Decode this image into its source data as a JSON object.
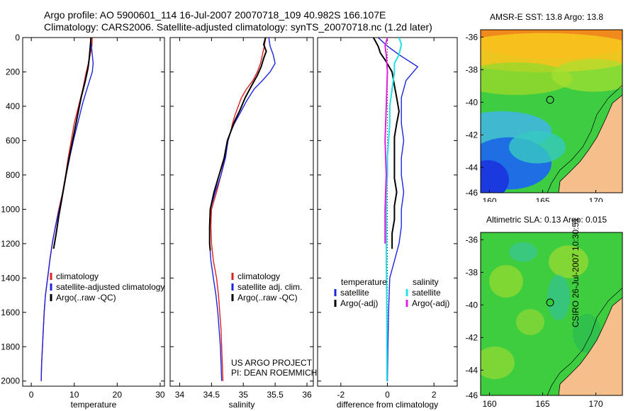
{
  "title_lines": [
    "Argo profile: AO 5900601_114 16-Jul-2007 20070718_109 40.982S 166.107E",
    "Climatology: CARS2006. Satellite-adjusted climatology: synTS_20070718.nc (1.2d later)"
  ],
  "credit": "CSIRO 26-Jul-2007 10:30:51",
  "colors": {
    "climatology": "#e02020",
    "satellite": "#1c24e0",
    "argo": "#000000",
    "salinity_sat": "#20e0e8",
    "salinity_argo": "#e020e0"
  },
  "chart_data": [
    {
      "type": "line",
      "xlabel": "temperature",
      "xlim": [
        -2,
        31
      ],
      "ylim": [
        2030,
        0
      ],
      "xticks": [
        "0",
        "10",
        "20",
        "30"
      ],
      "yticks": [
        "0",
        "200",
        "400",
        "600",
        "800",
        "1000",
        "1200",
        "1400",
        "1600",
        "1800",
        "2000"
      ],
      "legend": [
        "climatology",
        "satellite-adjusted climatology",
        "Argo(..raw -QC)"
      ],
      "series": [
        {
          "name": "climatology",
          "color": "#e02020",
          "width": 1.4,
          "points": [
            [
              14.2,
              0
            ],
            [
              14.1,
              50
            ],
            [
              13.7,
              100
            ],
            [
              13.3,
              150
            ],
            [
              12.8,
              200
            ],
            [
              12.0,
              300
            ],
            [
              11.0,
              400
            ],
            [
              10.0,
              500
            ],
            [
              9.3,
              600
            ],
            [
              8.6,
              700
            ],
            [
              8.0,
              800
            ],
            [
              7.3,
              900
            ],
            [
              6.4,
              1000
            ],
            [
              5.6,
              1100
            ],
            [
              4.9,
              1200
            ],
            [
              4.3,
              1300
            ],
            [
              3.8,
              1400
            ],
            [
              3.3,
              1500
            ],
            [
              3.0,
              1600
            ],
            [
              2.8,
              1700
            ],
            [
              2.6,
              1800
            ],
            [
              2.4,
              1900
            ],
            [
              2.3,
              2000
            ]
          ]
        },
        {
          "name": "satellite-adjusted climatology",
          "color": "#1c24e0",
          "width": 1.4,
          "points": [
            [
              13.8,
              0
            ],
            [
              14.0,
              50
            ],
            [
              14.2,
              100
            ],
            [
              14.4,
              150
            ],
            [
              14.2,
              200
            ],
            [
              13.2,
              280
            ],
            [
              12.0,
              380
            ],
            [
              11.0,
              480
            ],
            [
              10.0,
              580
            ],
            [
              9.1,
              680
            ],
            [
              8.3,
              780
            ],
            [
              7.5,
              880
            ],
            [
              6.7,
              980
            ],
            [
              5.8,
              1080
            ],
            [
              5.0,
              1180
            ],
            [
              4.4,
              1280
            ],
            [
              3.8,
              1400
            ],
            [
              3.3,
              1500
            ],
            [
              3.0,
              1600
            ],
            [
              2.8,
              1700
            ],
            [
              2.6,
              1800
            ],
            [
              2.4,
              1900
            ],
            [
              2.3,
              2000
            ]
          ]
        },
        {
          "name": "Argo(..raw -QC)",
          "color": "#000000",
          "width": 2,
          "points": [
            [
              13.9,
              0
            ],
            [
              13.7,
              60
            ],
            [
              13.5,
              120
            ],
            [
              13.2,
              180
            ],
            [
              12.5,
              260
            ],
            [
              11.6,
              350
            ],
            [
              10.8,
              450
            ],
            [
              10.1,
              540
            ],
            [
              9.3,
              640
            ],
            [
              8.5,
              740
            ],
            [
              7.8,
              840
            ],
            [
              7.1,
              940
            ],
            [
              6.4,
              1040
            ],
            [
              5.8,
              1140
            ],
            [
              5.2,
              1230
            ]
          ]
        }
      ]
    },
    {
      "type": "line",
      "xlabel": "salinity",
      "xlim": [
        33.85,
        36.1
      ],
      "ylim": [
        2030,
        0
      ],
      "xticks": [
        "34",
        "34.5",
        "35",
        "35.5",
        "36"
      ],
      "legend": [
        "climatology",
        "satellite adj. clim.",
        "Argo(..raw -QC)"
      ],
      "annotation": [
        "US ARGO PROJECT",
        "PI: DEAN ROEMMICH"
      ],
      "series": [
        {
          "name": "climatology",
          "color": "#e02020",
          "width": 1.4,
          "points": [
            [
              35.35,
              0
            ],
            [
              35.33,
              50
            ],
            [
              35.3,
              100
            ],
            [
              35.27,
              150
            ],
            [
              35.22,
              200
            ],
            [
              35.15,
              250
            ],
            [
              35.05,
              300
            ],
            [
              34.97,
              350
            ],
            [
              34.92,
              400
            ],
            [
              34.87,
              450
            ],
            [
              34.83,
              500
            ],
            [
              34.8,
              550
            ],
            [
              34.76,
              600
            ],
            [
              34.71,
              700
            ],
            [
              34.65,
              800
            ],
            [
              34.58,
              900
            ],
            [
              34.5,
              1000
            ],
            [
              34.49,
              1100
            ],
            [
              34.5,
              1200
            ],
            [
              34.53,
              1300
            ],
            [
              34.58,
              1400
            ],
            [
              34.61,
              1500
            ],
            [
              34.63,
              1600
            ],
            [
              34.65,
              1700
            ],
            [
              34.66,
              1800
            ],
            [
              34.67,
              1900
            ],
            [
              34.68,
              2000
            ]
          ]
        },
        {
          "name": "satellite adj. clim.",
          "color": "#1c24e0",
          "width": 1.4,
          "points": [
            [
              35.4,
              0
            ],
            [
              35.42,
              50
            ],
            [
              35.47,
              100
            ],
            [
              35.5,
              150
            ],
            [
              35.42,
              200
            ],
            [
              35.3,
              250
            ],
            [
              35.17,
              300
            ],
            [
              35.05,
              370
            ],
            [
              34.95,
              440
            ],
            [
              34.86,
              500
            ],
            [
              34.8,
              550
            ],
            [
              34.76,
              600
            ],
            [
              34.72,
              700
            ],
            [
              34.65,
              800
            ],
            [
              34.56,
              900
            ],
            [
              34.48,
              1000
            ],
            [
              34.47,
              1100
            ],
            [
              34.47,
              1200
            ],
            [
              34.49,
              1300
            ],
            [
              34.53,
              1400
            ],
            [
              34.57,
              1500
            ],
            [
              34.6,
              1600
            ],
            [
              34.62,
              1700
            ],
            [
              34.64,
              1800
            ],
            [
              34.65,
              1900
            ],
            [
              34.66,
              2000
            ]
          ]
        },
        {
          "name": "Argo(..raw -QC)",
          "color": "#000000",
          "width": 2,
          "points": [
            [
              35.35,
              0
            ],
            [
              35.32,
              40
            ],
            [
              35.36,
              80
            ],
            [
              35.32,
              120
            ],
            [
              35.28,
              170
            ],
            [
              35.22,
              220
            ],
            [
              35.13,
              280
            ],
            [
              35.03,
              350
            ],
            [
              34.95,
              420
            ],
            [
              34.86,
              490
            ],
            [
              34.8,
              550
            ],
            [
              34.75,
              600
            ],
            [
              34.7,
              700
            ],
            [
              34.62,
              800
            ],
            [
              34.54,
              900
            ],
            [
              34.48,
              1000
            ],
            [
              34.47,
              1100
            ],
            [
              34.47,
              1200
            ],
            [
              34.48,
              1240
            ]
          ]
        }
      ]
    },
    {
      "type": "line",
      "xlabel": "difference from climatology",
      "xlim": [
        -3.0,
        3.0
      ],
      "ylim": [
        2030,
        0
      ],
      "xticks": [
        "-2",
        "0",
        "2"
      ],
      "legend_headers": [
        "temperature",
        "salinity"
      ],
      "legend": [
        "satellite",
        "Argo(-adj)",
        "satellite",
        "Argo(-adj)"
      ],
      "series": [
        {
          "name": "satellite",
          "color": "#1c24e0",
          "width": 1.4,
          "points": [
            [
              -0.4,
              0
            ],
            [
              0.0,
              50
            ],
            [
              0.5,
              100
            ],
            [
              1.3,
              170
            ],
            [
              0.8,
              250
            ],
            [
              0.6,
              350
            ],
            [
              0.6,
              500
            ],
            [
              0.7,
              600
            ],
            [
              0.6,
              700
            ],
            [
              0.6,
              800
            ],
            [
              0.7,
              900
            ],
            [
              0.6,
              1000
            ],
            [
              0.6,
              1100
            ],
            [
              0.5,
              1200
            ],
            [
              0.3,
              1300
            ],
            [
              0.1,
              1400
            ],
            [
              0.05,
              1600
            ],
            [
              0.02,
              1800
            ],
            [
              0.0,
              2000
            ]
          ]
        },
        {
          "name": "Argo(-adj)",
          "color": "#000000",
          "width": 2,
          "points": [
            [
              -0.6,
              0
            ],
            [
              -0.4,
              50
            ],
            [
              -0.3,
              90
            ],
            [
              -0.1,
              130
            ],
            [
              0.2,
              200
            ],
            [
              0.3,
              280
            ],
            [
              0.4,
              350
            ],
            [
              0.5,
              430
            ],
            [
              0.4,
              500
            ],
            [
              0.3,
              580
            ],
            [
              0.3,
              660
            ],
            [
              0.3,
              740
            ],
            [
              0.3,
              820
            ],
            [
              0.4,
              900
            ],
            [
              0.3,
              980
            ],
            [
              0.3,
              1060
            ],
            [
              0.2,
              1140
            ],
            [
              0.2,
              1230
            ]
          ]
        },
        {
          "name": "satellite",
          "color": "#20e0e8",
          "width": 2,
          "points": [
            [
              0.5,
              0
            ],
            [
              0.6,
              40
            ],
            [
              0.5,
              100
            ],
            [
              0.3,
              150
            ],
            [
              0.3,
              200
            ],
            [
              0.2,
              300
            ],
            [
              0.1,
              400
            ],
            [
              0.1,
              500
            ],
            [
              0.05,
              600
            ],
            [
              0.0,
              700
            ],
            [
              0.0,
              800
            ],
            [
              -0.05,
              900
            ],
            [
              -0.05,
              1000
            ],
            [
              -0.05,
              1100
            ],
            [
              -0.05,
              1200
            ],
            [
              -0.05,
              1300
            ],
            [
              -0.03,
              1500
            ],
            [
              -0.02,
              1700
            ],
            [
              -0.02,
              2000
            ]
          ]
        },
        {
          "name": "Argo(-adj)",
          "color": "#e020e0",
          "width": 2,
          "points": [
            [
              0.0,
              0
            ],
            [
              -0.1,
              50
            ],
            [
              -0.05,
              100
            ],
            [
              0.0,
              200
            ],
            [
              -0.05,
              400
            ],
            [
              -0.1,
              600
            ],
            [
              -0.05,
              800
            ],
            [
              -0.1,
              1000
            ],
            [
              -0.1,
              1200
            ]
          ]
        }
      ]
    }
  ],
  "maps": [
    {
      "title": "AMSR-E SST: 13.8 Argo: 13.8",
      "xticks": [
        "160",
        "165",
        "170"
      ],
      "yticks": [
        "-36",
        "-38",
        "-40",
        "-42",
        "-44",
        "-46"
      ]
    },
    {
      "title": "Altimetric SLA: 0.13 Argo: 0.015",
      "xticks": [
        "160",
        "165",
        "170"
      ],
      "yticks": [
        "-36",
        "-38",
        "-40",
        "-42",
        "-44",
        "-46"
      ]
    }
  ]
}
